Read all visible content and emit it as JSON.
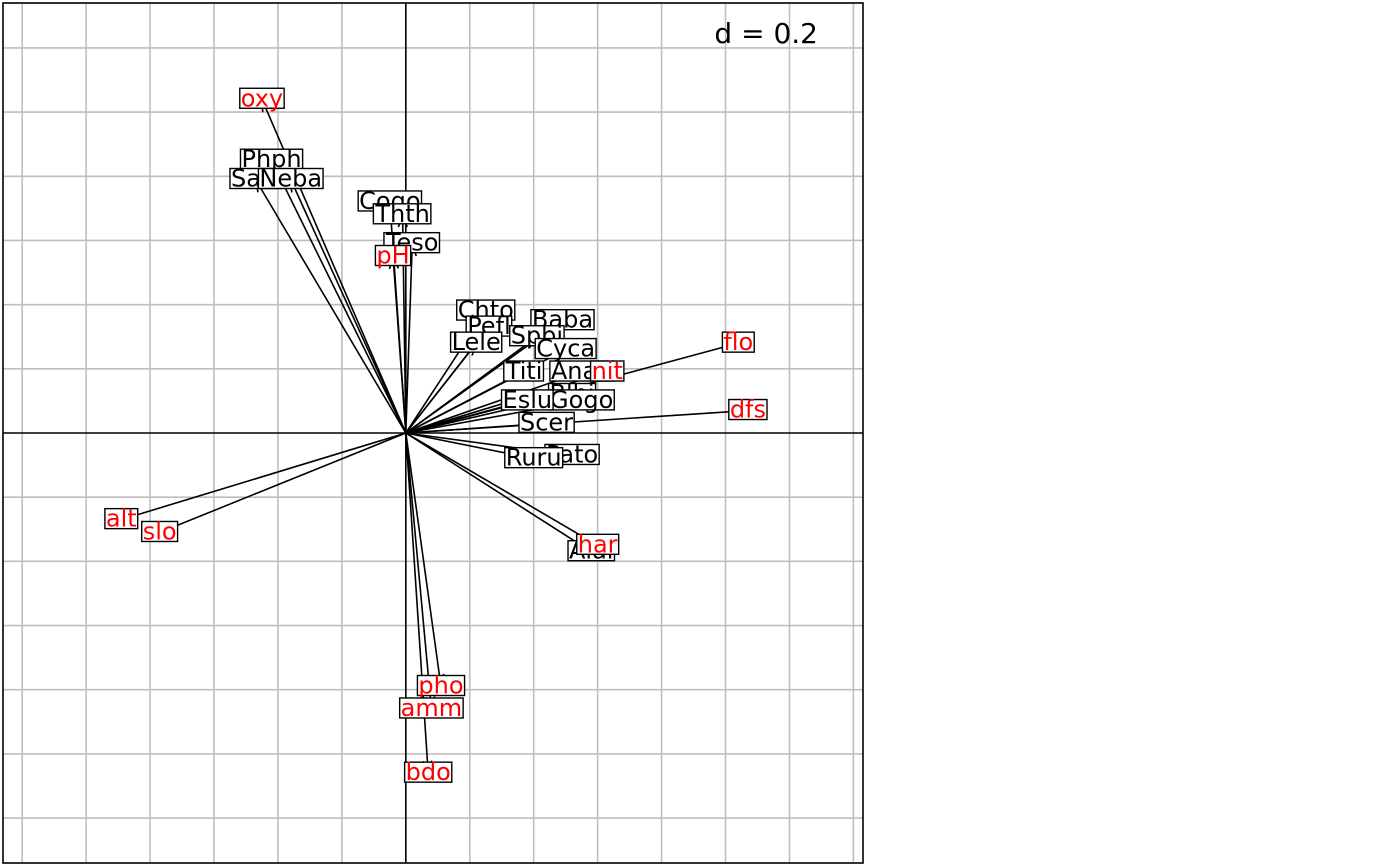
{
  "chart_data": {
    "type": "scatter",
    "title": "",
    "xlabel": "",
    "ylabel": "",
    "scale_label": "d = 0.2",
    "grid_step": 0.2,
    "xlim": [
      -1.26,
      1.43
    ],
    "ylim": [
      -1.34,
      1.34
    ],
    "grid": true,
    "colors": {
      "species": "#000000",
      "environment": "#ff0000",
      "grid": "#bebebe"
    },
    "series": [
      {
        "group": "environment",
        "color": "#ff0000",
        "points": [
          {
            "label": "oxy",
            "x": -0.45,
            "y": 1.04
          },
          {
            "label": "pH",
            "x": -0.04,
            "y": 0.55
          },
          {
            "label": "flo",
            "x": 1.04,
            "y": 0.28
          },
          {
            "label": "nit",
            "x": 0.63,
            "y": 0.19
          },
          {
            "label": "dfs",
            "x": 1.07,
            "y": 0.07
          },
          {
            "label": "har",
            "x": 0.6,
            "y": -0.35
          },
          {
            "label": "alt",
            "x": -0.89,
            "y": -0.27
          },
          {
            "label": "slo",
            "x": -0.77,
            "y": -0.31
          },
          {
            "label": "pho",
            "x": 0.11,
            "y": -0.79
          },
          {
            "label": "amm",
            "x": 0.08,
            "y": -0.86
          },
          {
            "label": "bdo",
            "x": 0.07,
            "y": -1.06
          }
        ]
      },
      {
        "group": "species",
        "color": "#000000",
        "points": [
          {
            "label": "Phph",
            "x": -0.42,
            "y": 0.85
          },
          {
            "label": "Satr",
            "x": -0.47,
            "y": 0.79
          },
          {
            "label": "Neba",
            "x": -0.36,
            "y": 0.79
          },
          {
            "label": "Cogo",
            "x": -0.05,
            "y": 0.72
          },
          {
            "label": "Thth",
            "x": -0.01,
            "y": 0.68
          },
          {
            "label": "Teso",
            "x": 0.02,
            "y": 0.59
          },
          {
            "label": "Chto",
            "x": 0.25,
            "y": 0.38
          },
          {
            "label": "Pefl",
            "x": 0.26,
            "y": 0.33
          },
          {
            "label": "Lele",
            "x": 0.22,
            "y": 0.28
          },
          {
            "label": "Baba",
            "x": 0.49,
            "y": 0.35
          },
          {
            "label": "Spbi",
            "x": 0.41,
            "y": 0.3
          },
          {
            "label": "Cyca",
            "x": 0.5,
            "y": 0.26
          },
          {
            "label": "Titi",
            "x": 0.37,
            "y": 0.19
          },
          {
            "label": "Anan",
            "x": 0.55,
            "y": 0.19
          },
          {
            "label": "Blbj",
            "x": 0.52,
            "y": 0.12
          },
          {
            "label": "Gogo",
            "x": 0.55,
            "y": 0.1
          },
          {
            "label": "Eslu",
            "x": 0.38,
            "y": 0.1
          },
          {
            "label": "Scer",
            "x": 0.44,
            "y": 0.03
          },
          {
            "label": "Pato",
            "x": 0.52,
            "y": -0.07
          },
          {
            "label": "Ruru",
            "x": 0.4,
            "y": -0.08
          },
          {
            "label": "Alal",
            "x": 0.58,
            "y": -0.37
          }
        ]
      }
    ]
  }
}
